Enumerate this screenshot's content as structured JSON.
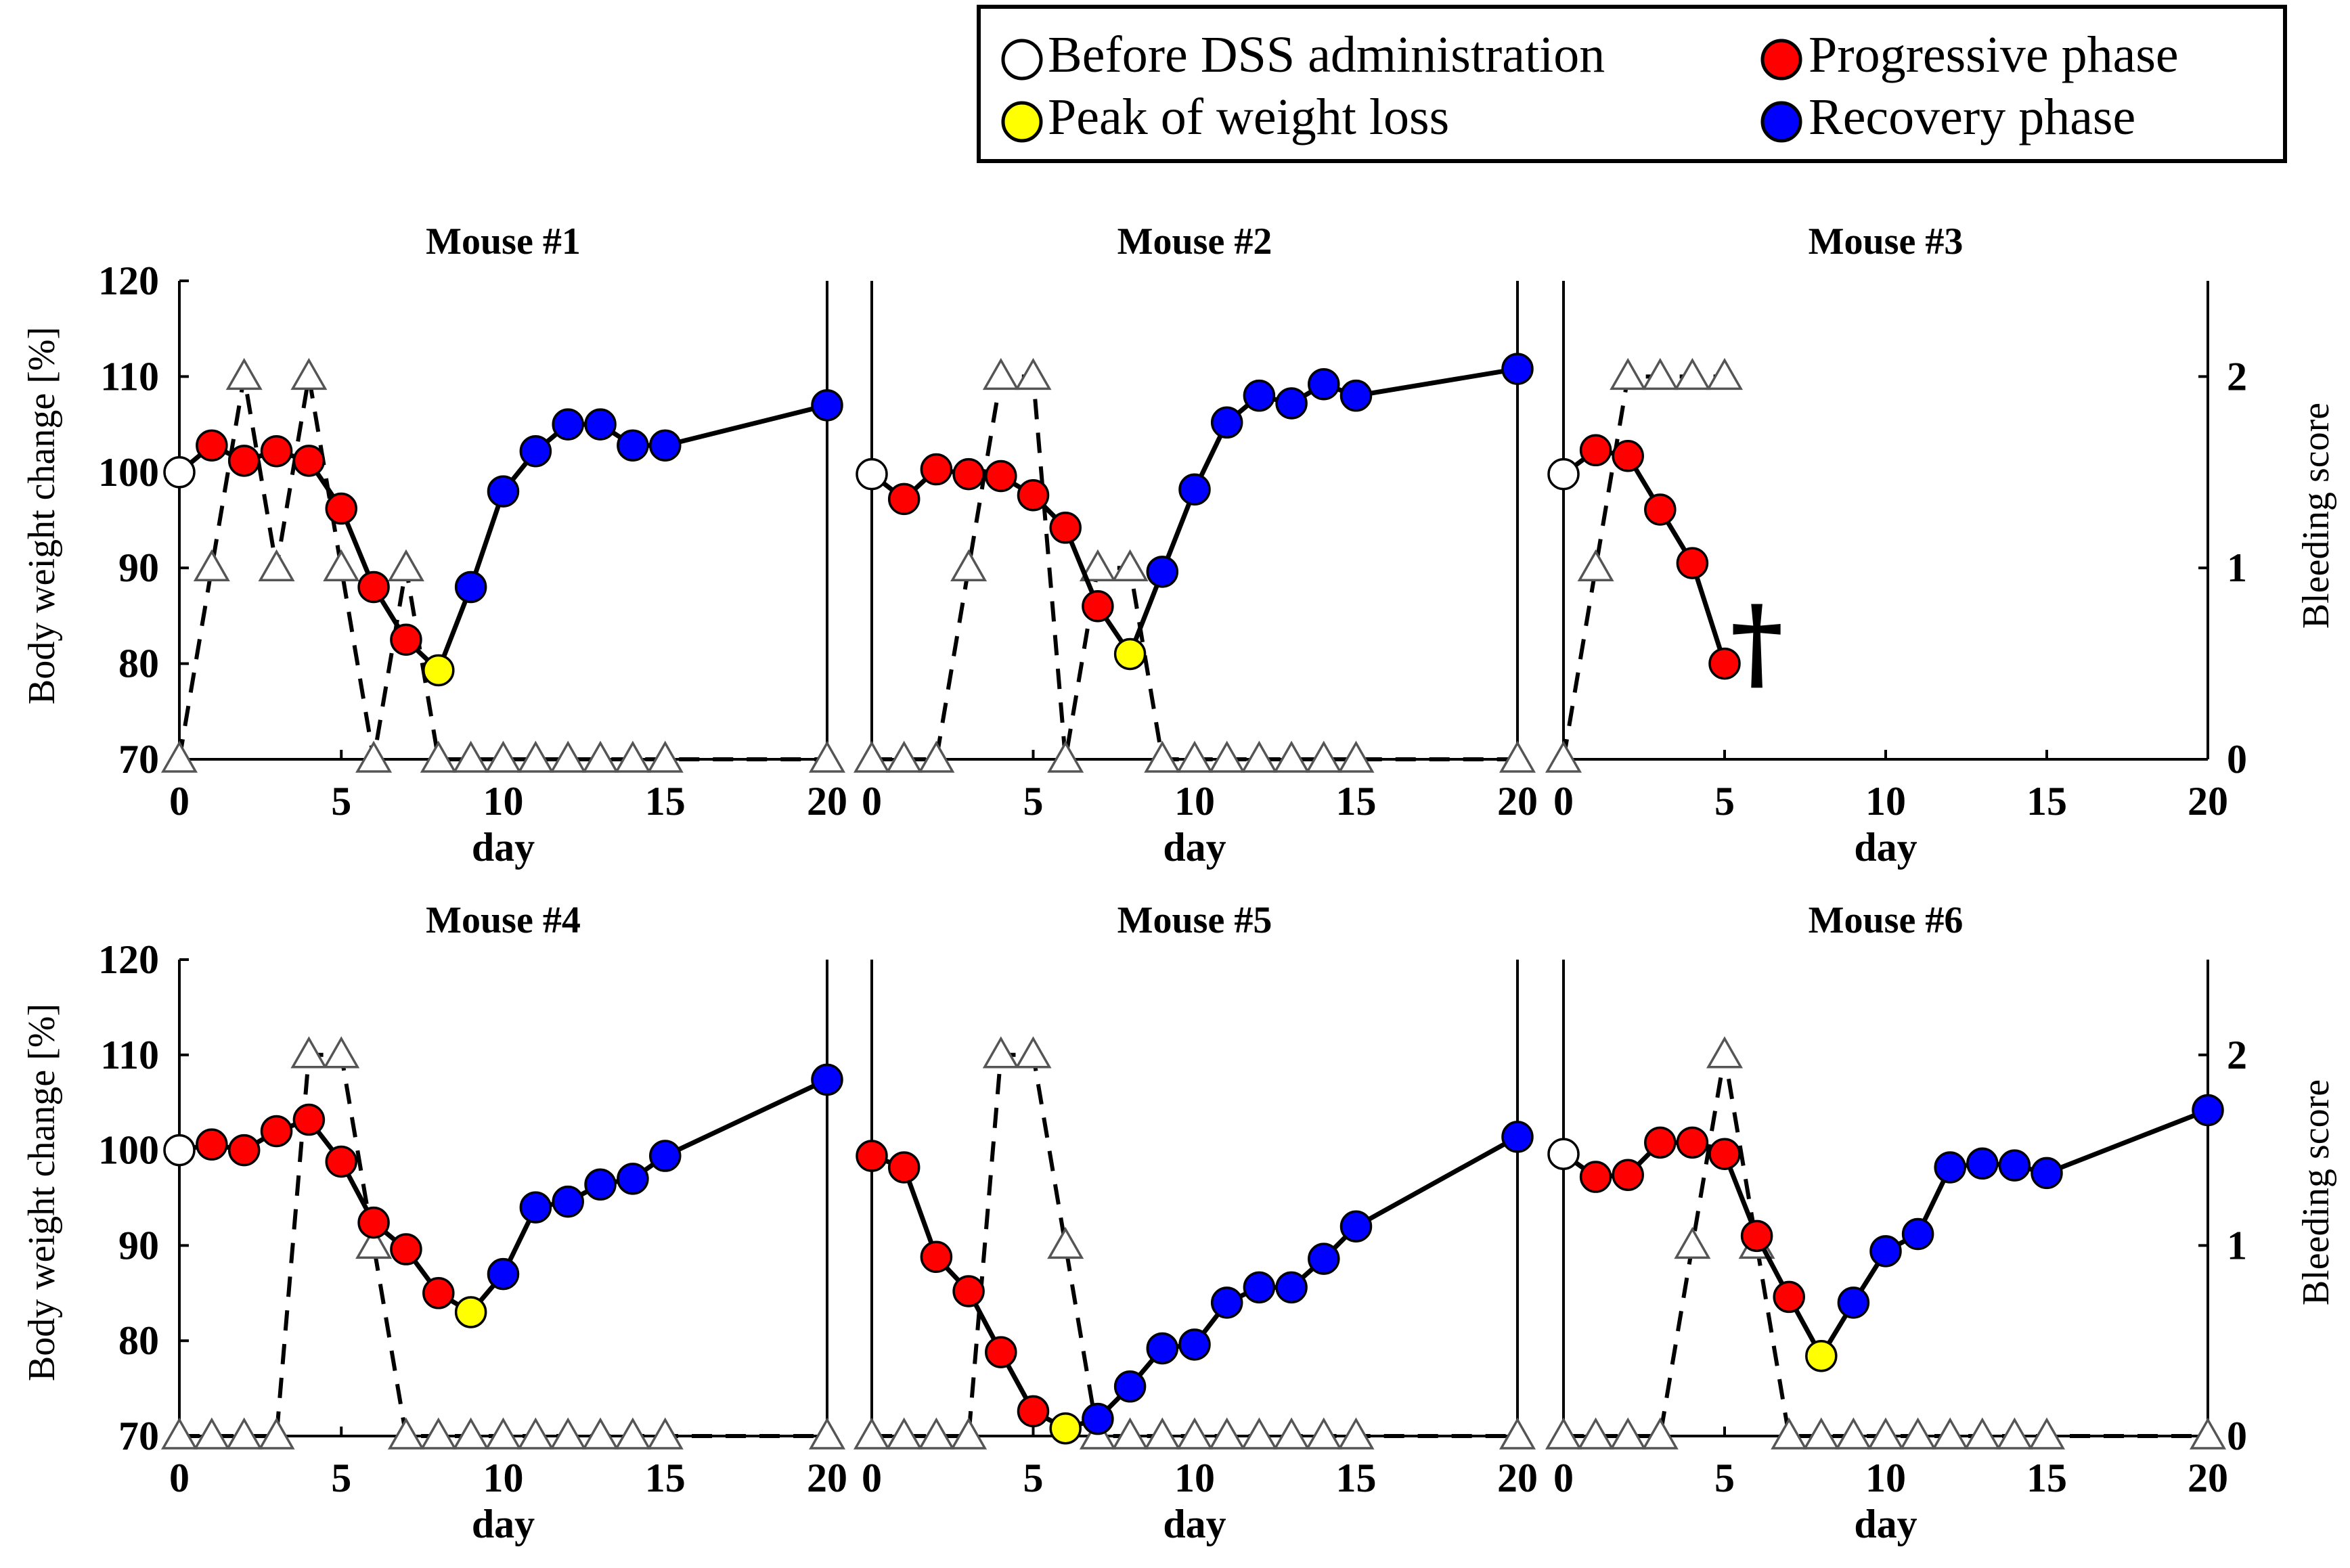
{
  "legend": {
    "items": [
      {
        "label": "Before DSS administration",
        "color": "#ffffff",
        "key": "before"
      },
      {
        "label": "Progressive phase",
        "color": "#ff0000",
        "key": "progressive"
      },
      {
        "label": "Peak of weight loss",
        "color": "#ffff00",
        "key": "peak"
      },
      {
        "label": "Recovery phase",
        "color": "#0000ff",
        "key": "recovery"
      }
    ]
  },
  "axes": {
    "xlabel": "day",
    "ylabel_left": "Body weight change [%]",
    "ylabel_right": "Bleeding score",
    "xlim": [
      0,
      20
    ],
    "ylim": [
      70,
      120
    ],
    "y2lim": [
      0,
      2.5
    ],
    "xticks": [
      "0",
      "5",
      "10",
      "15",
      "20"
    ],
    "yticks": [
      "70",
      "80",
      "90",
      "100",
      "110",
      "120"
    ],
    "y2ticks": [
      "0",
      "1",
      "2"
    ]
  },
  "chart_data": [
    {
      "type": "line",
      "title": "Mouse #1",
      "weight": {
        "x": [
          0,
          1,
          2,
          3,
          4,
          5,
          6,
          7,
          8,
          9,
          10,
          11,
          12,
          13,
          14,
          15,
          20
        ],
        "y": [
          100,
          102.8,
          101.2,
          102.2,
          101.2,
          96.2,
          88,
          82.5,
          79.3,
          88,
          98,
          102.2,
          105,
          105,
          102.8,
          102.8,
          107
        ],
        "phase": [
          "before",
          "progressive",
          "progressive",
          "progressive",
          "progressive",
          "progressive",
          "progressive",
          "progressive",
          "peak",
          "recovery",
          "recovery",
          "recovery",
          "recovery",
          "recovery",
          "recovery",
          "recovery",
          "recovery"
        ]
      },
      "bleeding": {
        "x": [
          0,
          1,
          2,
          3,
          4,
          5,
          6,
          7,
          8,
          9,
          10,
          11,
          12,
          13,
          14,
          15,
          20
        ],
        "y": [
          0,
          1,
          2,
          1,
          2,
          1,
          0,
          1,
          0,
          0,
          0,
          0,
          0,
          0,
          0,
          0,
          0
        ]
      },
      "death_day": null
    },
    {
      "type": "line",
      "title": "Mouse #2",
      "weight": {
        "x": [
          0,
          1,
          2,
          3,
          4,
          5,
          6,
          7,
          8,
          9,
          10,
          11,
          12,
          13,
          14,
          15,
          20
        ],
        "y": [
          99.8,
          97.2,
          100.3,
          99.8,
          99.6,
          97.6,
          94.2,
          86,
          81,
          89.6,
          98.2,
          105.2,
          108,
          107.2,
          109.2,
          108,
          110.8
        ],
        "phase": [
          "before",
          "progressive",
          "progressive",
          "progressive",
          "progressive",
          "progressive",
          "progressive",
          "progressive",
          "peak",
          "recovery",
          "recovery",
          "recovery",
          "recovery",
          "recovery",
          "recovery",
          "recovery",
          "recovery"
        ]
      },
      "bleeding": {
        "x": [
          0,
          1,
          2,
          3,
          4,
          5,
          6,
          7,
          8,
          9,
          10,
          11,
          12,
          13,
          14,
          15,
          20
        ],
        "y": [
          0,
          0,
          0,
          1,
          2,
          2,
          0,
          1,
          1,
          0,
          0,
          0,
          0,
          0,
          0,
          0,
          0
        ]
      },
      "death_day": null
    },
    {
      "type": "line",
      "title": "Mouse #3",
      "weight": {
        "x": [
          0,
          1,
          2,
          3,
          4,
          5
        ],
        "y": [
          99.8,
          102.3,
          101.7,
          96.1,
          90.5,
          80
        ],
        "phase": [
          "before",
          "progressive",
          "progressive",
          "progressive",
          "progressive",
          "progressive"
        ]
      },
      "bleeding": {
        "x": [
          0,
          1,
          2,
          3,
          4,
          5
        ],
        "y": [
          0,
          1,
          2,
          2,
          2,
          2
        ]
      },
      "death_day": 6,
      "death_marker": "†"
    },
    {
      "type": "line",
      "title": "Mouse #4",
      "weight": {
        "x": [
          0,
          1,
          2,
          3,
          4,
          5,
          6,
          7,
          8,
          9,
          10,
          11,
          12,
          13,
          14,
          15,
          20
        ],
        "y": [
          100,
          100.6,
          100,
          102,
          103.2,
          98.8,
          92.4,
          89.6,
          85,
          83,
          87,
          94,
          94.6,
          96.4,
          97,
          99.4,
          107.4
        ],
        "phase": [
          "before",
          "progressive",
          "progressive",
          "progressive",
          "progressive",
          "progressive",
          "progressive",
          "progressive",
          "progressive",
          "peak",
          "recovery",
          "recovery",
          "recovery",
          "recovery",
          "recovery",
          "recovery",
          "recovery"
        ]
      },
      "bleeding": {
        "x": [
          0,
          1,
          2,
          3,
          4,
          5,
          6,
          7,
          8,
          9,
          10,
          11,
          12,
          13,
          14,
          15,
          20
        ],
        "y": [
          0,
          0,
          0,
          0,
          2,
          2,
          1,
          0,
          0,
          0,
          0,
          0,
          0,
          0,
          0,
          0,
          0
        ]
      },
      "death_day": null
    },
    {
      "type": "line",
      "title": "Mouse #5",
      "weight": {
        "x": [
          0,
          1,
          2,
          3,
          4,
          5,
          6,
          7,
          8,
          9,
          10,
          11,
          12,
          13,
          14,
          15,
          20
        ],
        "y": [
          99.4,
          98.2,
          88.8,
          85.2,
          78.8,
          72.6,
          70.8,
          71.8,
          75.2,
          79.2,
          79.6,
          84,
          85.6,
          85.6,
          88.6,
          92,
          101.4
        ],
        "phase": [
          "progressive",
          "progressive",
          "progressive",
          "progressive",
          "progressive",
          "progressive",
          "peak",
          "recovery",
          "recovery",
          "recovery",
          "recovery",
          "recovery",
          "recovery",
          "recovery",
          "recovery",
          "recovery",
          "recovery"
        ]
      },
      "bleeding": {
        "x": [
          0,
          1,
          2,
          3,
          4,
          5,
          6,
          7,
          8,
          9,
          10,
          11,
          12,
          13,
          14,
          15,
          20
        ],
        "y": [
          0,
          0,
          0,
          0,
          2,
          2,
          1,
          0,
          0,
          0,
          0,
          0,
          0,
          0,
          0,
          0,
          0
        ]
      },
      "death_day": null
    },
    {
      "type": "line",
      "title": "Mouse #6",
      "weight": {
        "x": [
          0,
          1,
          2,
          3,
          4,
          5,
          6,
          7,
          8,
          9,
          10,
          11,
          12,
          13,
          14,
          15,
          20
        ],
        "y": [
          99.6,
          97.2,
          97.4,
          100.8,
          100.8,
          99.6,
          91,
          84.6,
          78.4,
          84,
          89.4,
          91.2,
          98.2,
          98.6,
          98.4,
          97.6,
          104.2
        ],
        "phase": [
          "before",
          "progressive",
          "progressive",
          "progressive",
          "progressive",
          "progressive",
          "progressive",
          "progressive",
          "peak",
          "recovery",
          "recovery",
          "recovery",
          "recovery",
          "recovery",
          "recovery",
          "recovery",
          "recovery"
        ]
      },
      "bleeding": {
        "x": [
          0,
          1,
          2,
          3,
          4,
          5,
          6,
          7,
          8,
          9,
          10,
          11,
          12,
          13,
          14,
          15,
          20
        ],
        "y": [
          0,
          0,
          0,
          0,
          1,
          2,
          1,
          0,
          0,
          0,
          0,
          0,
          0,
          0,
          0,
          0,
          0
        ]
      },
      "death_day": null
    }
  ]
}
